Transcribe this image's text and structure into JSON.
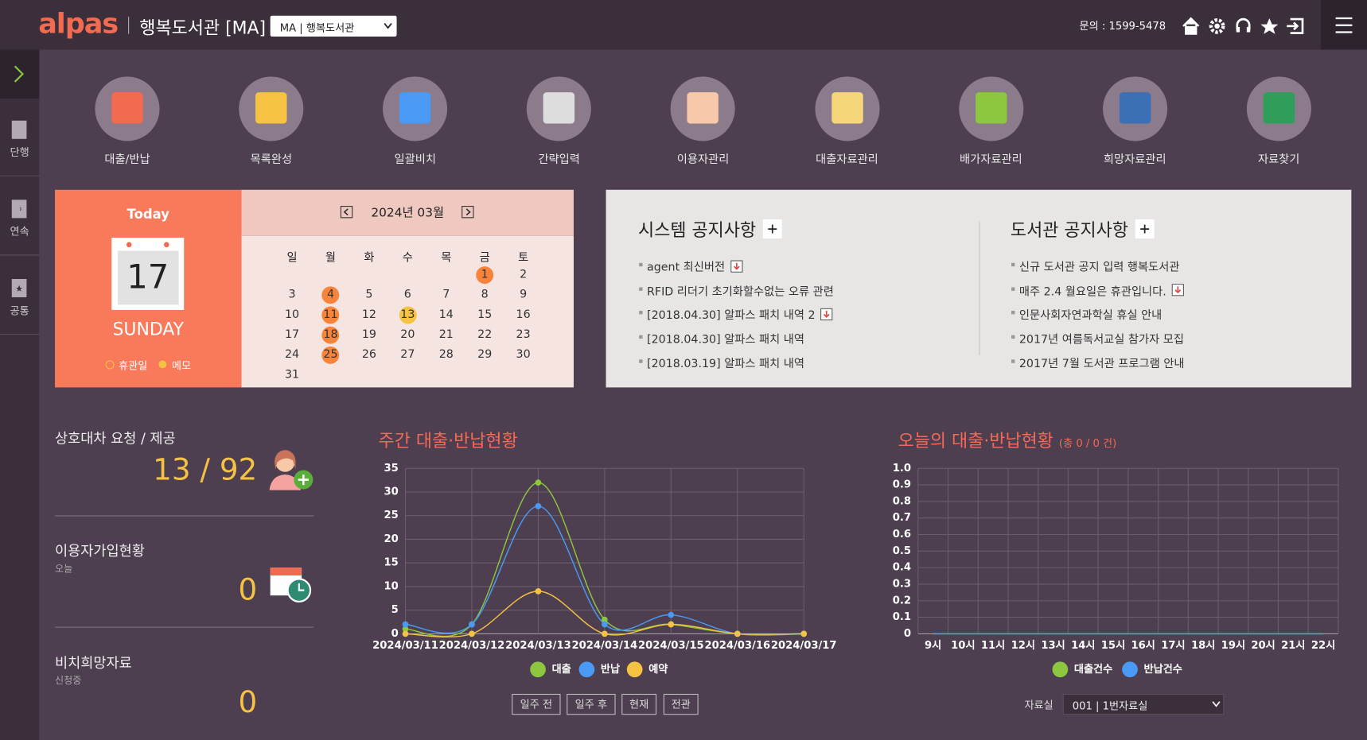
{
  "header": {
    "logo": "alpas",
    "library": "행복도서관 [MA]",
    "library_select": "MA | 행복도서관",
    "contact": "문의 : 1599-5478"
  },
  "sidebar": [
    "단행",
    "연속",
    "공통"
  ],
  "menu": [
    "대출/반납",
    "목록완성",
    "일괄비치",
    "간략입력",
    "이용자관리",
    "대출자료관리",
    "배가자료관리",
    "희망자료관리",
    "자료찾기"
  ],
  "today": {
    "label": "Today",
    "day": 17,
    "weekday": "SUNDAY",
    "legend": [
      "휴관일",
      "메모"
    ]
  },
  "calendar": {
    "month": "2024년 03월",
    "weekdays": [
      "일",
      "월",
      "화",
      "수",
      "목",
      "금",
      "토"
    ],
    "weeks": [
      [
        1,
        2
      ],
      [
        3,
        4,
        5,
        6,
        7,
        8,
        9
      ],
      [
        10,
        11,
        12,
        13,
        14,
        15,
        16
      ],
      [
        17,
        18,
        19,
        20,
        21,
        22,
        23
      ],
      [
        24,
        25,
        26,
        27,
        28,
        29,
        30
      ],
      [
        31
      ]
    ],
    "holidays": [
      1,
      4,
      11,
      18,
      25
    ],
    "memos": [
      13
    ]
  },
  "notices": [
    {
      "title": "시스템 공지사항",
      "items": [
        {
          "text": "agent 최신버전",
          "file": true
        },
        {
          "text": "RFID 리더기 초기화할수없는 오류 관련",
          "file": false
        },
        {
          "text": "[2018.04.30] 알파스 패치 내역 2",
          "file": true
        },
        {
          "text": "[2018.04.30] 알파스 패치 내역",
          "file": false
        },
        {
          "text": "[2018.03.19] 알파스 패치 내역",
          "file": false
        }
      ]
    },
    {
      "title": "도서관 공지사항",
      "items": [
        {
          "text": "신규 도서관 공지 입력 행복도서관",
          "file": false
        },
        {
          "text": "매주 2.4 월요일은 휴관입니다.",
          "file": true
        },
        {
          "text": "인문사회자연과학실 휴실 안내",
          "file": false
        },
        {
          "text": "2017년 여름독서교실 참가자 모집",
          "file": false
        },
        {
          "text": "2017년 7월 도서관 프로그램 안내",
          "file": false
        }
      ]
    }
  ],
  "stats": {
    "interlibrary": {
      "title": "상호대차 요청 / 제공",
      "value": "13 / 92"
    },
    "members": {
      "title": "이용자가입현황",
      "sub": "오늘",
      "value": 0
    },
    "wish": {
      "title": "비치희망자료",
      "sub": "신청중",
      "value": 0
    }
  },
  "chart_data": [
    {
      "type": "line",
      "title": "주간 대출·반납현황",
      "x": [
        "2024/03/11",
        "2024/03/12",
        "2024/03/13",
        "2024/03/14",
        "2024/03/15",
        "2024/03/16",
        "2024/03/17"
      ],
      "ylim": [
        0,
        35
      ],
      "yticks": [
        0,
        5,
        10,
        15,
        20,
        25,
        30,
        35
      ],
      "grid": true,
      "series": [
        {
          "name": "대출",
          "color": "#8dc63f",
          "values": [
            1,
            2,
            32,
            3,
            2,
            0,
            0
          ]
        },
        {
          "name": "반납",
          "color": "#4a9af5",
          "values": [
            2,
            2,
            27,
            2,
            4,
            0,
            0
          ]
        },
        {
          "name": "예약",
          "color": "#f5c242",
          "values": [
            0,
            0,
            9,
            0,
            2,
            0,
            0
          ]
        }
      ]
    },
    {
      "type": "line",
      "title": "오늘의 대출·반납현황",
      "subtitle": "(총 0 / 0 건)",
      "categories": [
        "9시",
        "10시",
        "11시",
        "12시",
        "13시",
        "14시",
        "15시",
        "16시",
        "17시",
        "18시",
        "19시",
        "20시",
        "21시",
        "22시"
      ],
      "ylim": [
        0,
        1
      ],
      "yticks": [
        0,
        0.1,
        0.2,
        0.3,
        0.4,
        0.5,
        0.6,
        0.7,
        0.8,
        0.9,
        {
          "value": 1,
          "label": "1.0"
        }
      ],
      "grid": true,
      "series": [
        {
          "name": "대출건수",
          "color": "#8dc63f",
          "values": [
            0,
            0,
            0,
            0,
            0,
            0,
            0,
            0,
            0,
            0,
            0,
            0,
            0,
            0
          ]
        },
        {
          "name": "반납건수",
          "color": "#4a9af5",
          "values": [
            0,
            0,
            0,
            0,
            0,
            0,
            0,
            0,
            0,
            0,
            0,
            0,
            0,
            0
          ]
        }
      ]
    }
  ],
  "controls": {
    "buttons": [
      "일주 전",
      "일주 후",
      "현재",
      "전관"
    ],
    "room_label": "자료실",
    "room_select": "001 | 1번자료실"
  }
}
